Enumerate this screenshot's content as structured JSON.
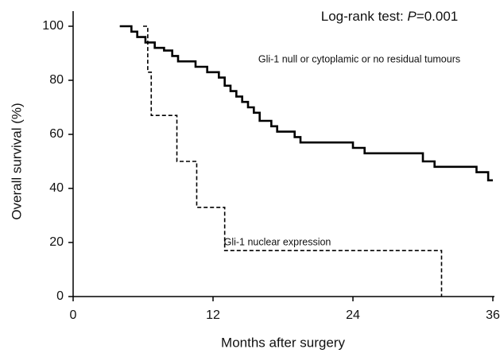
{
  "chart_data": {
    "type": "line",
    "step": "post",
    "xlabel": "Months after surgery",
    "ylabel": "Overall survival (%)",
    "annotation_parts": [
      "Log-rank test: ",
      "P",
      "=0.001"
    ],
    "xlim": [
      0,
      36
    ],
    "xticks": [
      0,
      12,
      24,
      36
    ],
    "ylim": [
      0,
      100
    ],
    "yticks": [
      0,
      20,
      40,
      60,
      80,
      100
    ],
    "series": [
      {
        "name": "Gli-1 null or cytoplamic or no residual tumours",
        "color": "#000000",
        "dash": false,
        "x": [
          4,
          5,
          5.5,
          6.2,
          7,
          7.8,
          8.5,
          9,
          10.5,
          11.5,
          12.5,
          13,
          13.5,
          14,
          14.5,
          15,
          15.5,
          16,
          17,
          17.5,
          19,
          19.5,
          24,
          25,
          30,
          31,
          34.6,
          35.6,
          36
        ],
        "values": [
          100,
          98,
          96,
          94,
          92,
          91,
          89,
          87,
          85,
          83,
          81,
          78,
          76,
          74,
          72,
          70,
          68,
          65,
          63,
          61,
          59,
          57,
          55,
          53,
          50,
          48,
          46,
          43,
          43
        ]
      },
      {
        "name": "Gli-1 nuclear expression",
        "color": "#000000",
        "dash": true,
        "x": [
          6,
          6.4,
          6.7,
          8.9,
          10.6,
          13,
          31.6
        ],
        "values": [
          100,
          83,
          67,
          50,
          33,
          17,
          0
        ]
      }
    ]
  }
}
